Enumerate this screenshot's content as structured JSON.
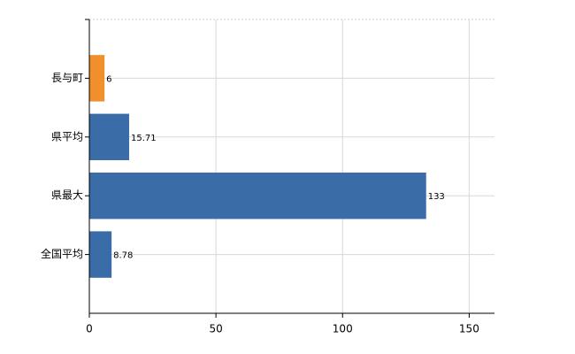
{
  "chart_data": {
    "type": "bar",
    "orientation": "horizontal",
    "categories": [
      "長与町",
      "県平均",
      "県最大",
      "全国平均"
    ],
    "values": [
      6,
      15.71,
      133,
      8.78
    ],
    "colors": [
      "#f0902c",
      "#3a6ca8",
      "#3a6ca8",
      "#3a6ca8"
    ],
    "xlim": [
      0,
      160
    ],
    "xticks": [
      0,
      50,
      100,
      150
    ],
    "grid": true
  }
}
